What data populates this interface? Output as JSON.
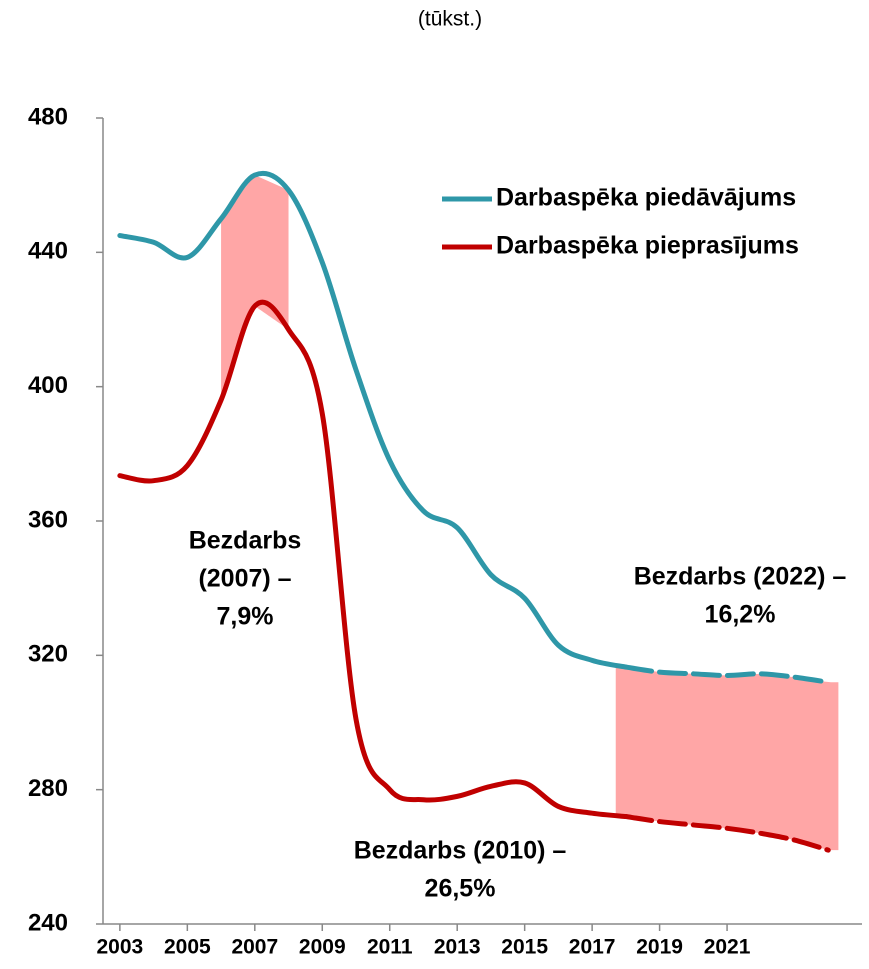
{
  "chart_data": {
    "type": "line",
    "subtitle": "(tūkst.)",
    "x": [
      2003,
      2004,
      2005,
      2006,
      2007,
      2008,
      2009,
      2010,
      2011,
      2012,
      2013,
      2014,
      2015,
      2016,
      2017,
      2018,
      2019,
      2020,
      2021,
      2022,
      2023,
      2024
    ],
    "series": [
      {
        "name": "Darbaspēka piedāvājums",
        "color": "#2e97a8",
        "values": [
          445,
          443,
          438.5,
          450,
          463,
          458.5,
          437,
          405,
          378,
          363,
          358,
          344,
          337,
          323,
          318.5,
          316.5,
          315,
          314.5,
          314,
          314.5,
          313.5,
          312
        ]
      },
      {
        "name": "Darbaspēka pieprasījums",
        "color": "#c00000",
        "values": [
          373.5,
          372,
          376.5,
          396,
          424,
          417,
          392,
          301,
          280,
          277,
          278,
          281,
          282,
          275,
          273,
          272,
          270.5,
          269.5,
          268.5,
          267,
          265,
          262
        ]
      }
    ],
    "dashed_from": 2018,
    "shaded_ranges": [
      [
        2006,
        2008
      ],
      [
        2017.7,
        2024.3
      ]
    ],
    "shade_color": "#ffa6a6",
    "xlim": [
      2002.5,
      2025
    ],
    "xticks": [
      2003,
      2005,
      2007,
      2009,
      2011,
      2013,
      2015,
      2017,
      2019,
      2021
    ],
    "ylim": [
      240,
      480
    ],
    "yticks": [
      240,
      280,
      320,
      360,
      400,
      440,
      480
    ],
    "legend": "upper right",
    "annotations": [
      {
        "lines": [
          "Bezdarbs",
          "(2007) –",
          "7,9%"
        ]
      },
      {
        "lines": [
          "Bezdarbs (2022) –",
          "16,2%"
        ]
      },
      {
        "lines": [
          "Bezdarbs (2010)  –",
          "26,5%"
        ]
      }
    ]
  }
}
